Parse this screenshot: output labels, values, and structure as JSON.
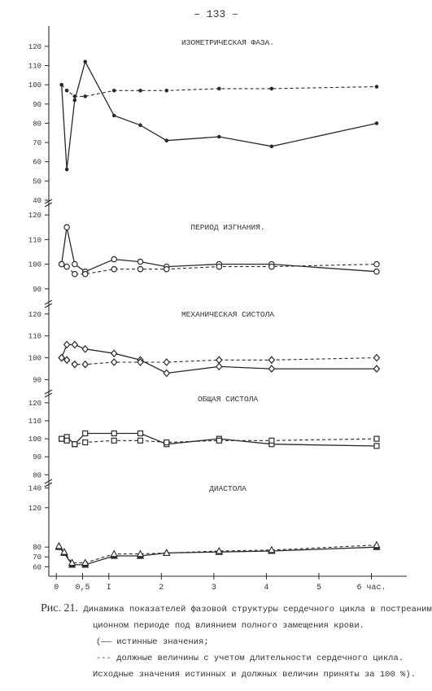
{
  "page_number": "– 133 –",
  "chart_data": [
    {
      "type": "line",
      "title": "ИЗОМЕТРИЧЕСКАЯ ФАЗА.",
      "yticks": [
        "120",
        "110",
        "100",
        "90",
        "80",
        "70",
        "60",
        "50",
        "40"
      ],
      "ylim": [
        40,
        128
      ],
      "series": [
        {
          "style": "solid",
          "marker": "dot",
          "x": [
            0.1,
            0.2,
            0.35,
            0.55,
            1.1,
            1.6,
            2.1,
            3.1,
            4.1,
            6.1
          ],
          "values": [
            100,
            56,
            92,
            112,
            84,
            79,
            71,
            73,
            68,
            80
          ]
        },
        {
          "style": "dashed",
          "marker": "dot",
          "x": [
            0.1,
            0.2,
            0.35,
            0.55,
            1.1,
            1.6,
            2.1,
            3.1,
            4.1,
            6.1
          ],
          "values": [
            100,
            97,
            94,
            94,
            97,
            97,
            97,
            98,
            98,
            99
          ]
        }
      ]
    },
    {
      "type": "line",
      "title": "ПЕРИОД ИЗГНАНИЯ.",
      "yticks": [
        "120",
        "110",
        "100",
        "90"
      ],
      "ylim": [
        85,
        124
      ],
      "series": [
        {
          "style": "solid",
          "marker": "circle",
          "x": [
            0.1,
            0.2,
            0.35,
            0.55,
            1.1,
            1.6,
            2.1,
            3.1,
            4.1,
            6.1
          ],
          "values": [
            100,
            115,
            100,
            97,
            102,
            101,
            99,
            100,
            100,
            97
          ]
        },
        {
          "style": "dashed",
          "marker": "circle",
          "x": [
            0.1,
            0.2,
            0.35,
            0.55,
            1.1,
            1.6,
            2.1,
            3.1,
            4.1,
            6.1
          ],
          "values": [
            100,
            99,
            96,
            96,
            98,
            98,
            98,
            99,
            99,
            100
          ]
        }
      ]
    },
    {
      "type": "line",
      "title": "МЕХАНИЧЕСКАЯ СИСТОЛА",
      "yticks": [
        "120",
        "110",
        "100",
        "90"
      ],
      "ylim": [
        85,
        124
      ],
      "series": [
        {
          "style": "solid",
          "marker": "diamond",
          "x": [
            0.1,
            0.2,
            0.35,
            0.55,
            1.1,
            1.6,
            2.1,
            3.1,
            4.1,
            6.1
          ],
          "values": [
            100,
            106,
            106,
            104,
            102,
            99,
            93,
            96,
            95,
            95
          ]
        },
        {
          "style": "dashed",
          "marker": "diamond",
          "x": [
            0.1,
            0.2,
            0.35,
            0.55,
            1.1,
            1.6,
            2.1,
            3.1,
            4.1,
            6.1
          ],
          "values": [
            100,
            99,
            97,
            97,
            98,
            98,
            98,
            99,
            99,
            100
          ]
        }
      ]
    },
    {
      "type": "line",
      "title": "ОБЩАЯ СИСТОЛА",
      "yticks": [
        "120",
        "110",
        "100",
        "90",
        "80"
      ],
      "ylim": [
        77,
        124
      ],
      "series": [
        {
          "style": "solid",
          "marker": "square",
          "x": [
            0.1,
            0.2,
            0.35,
            0.55,
            1.1,
            1.6,
            2.1,
            3.1,
            4.1,
            6.1
          ],
          "values": [
            100,
            101,
            97,
            103,
            103,
            103,
            97,
            100,
            97,
            96
          ]
        },
        {
          "style": "dashed",
          "marker": "square",
          "x": [
            0.1,
            0.2,
            0.35,
            0.55,
            1.1,
            1.6,
            2.1,
            3.1,
            4.1,
            6.1
          ],
          "values": [
            100,
            99,
            97,
            98,
            99,
            99,
            98,
            99,
            99,
            100
          ]
        }
      ]
    },
    {
      "type": "line",
      "title": "ДИАСТОЛА",
      "yticks": [
        "140",
        "120",
        "80",
        "70",
        "60"
      ],
      "ylim": [
        52,
        143
      ],
      "series": [
        {
          "style": "solid",
          "marker": "triangle",
          "x": [
            0.05,
            0.15,
            0.3,
            0.55,
            1.1,
            1.6,
            2.1,
            3.1,
            4.1,
            6.1
          ],
          "values": [
            80,
            74,
            62,
            62,
            71,
            71,
            74,
            75,
            76,
            80
          ]
        },
        {
          "style": "dashed",
          "marker": "triangle",
          "x": [
            0.05,
            0.15,
            0.3,
            0.55,
            1.1,
            1.6,
            2.1,
            3.1,
            4.1,
            6.1
          ],
          "values": [
            81,
            75,
            64,
            64,
            73,
            73,
            74,
            76,
            77,
            82
          ]
        }
      ]
    }
  ],
  "x_axis": {
    "ticks": [
      {
        "value": 0,
        "label": "0"
      },
      {
        "value": 0.5,
        "label": "0,5"
      },
      {
        "value": 1,
        "label": "I"
      },
      {
        "value": 2,
        "label": "2"
      },
      {
        "value": 3,
        "label": "3"
      },
      {
        "value": 4,
        "label": "4"
      },
      {
        "value": 5,
        "label": "5"
      },
      {
        "value": 6,
        "label": "6 час."
      }
    ],
    "xlim": [
      -0.05,
      6.55
    ]
  },
  "caption": {
    "fig_label": "Рис. 21.",
    "line1": "Динамика показателей фазовой структуры сердечного цикла в постреанима-",
    "line2": "ционном периоде под влиянием полного замещения крови.",
    "line3": "(—— истинные значения;",
    "line4": "--- должные величины с учетом длительности сердечного цикла.",
    "line5": "Исходные значения истинных и должных величин приняты за 100 %)."
  }
}
